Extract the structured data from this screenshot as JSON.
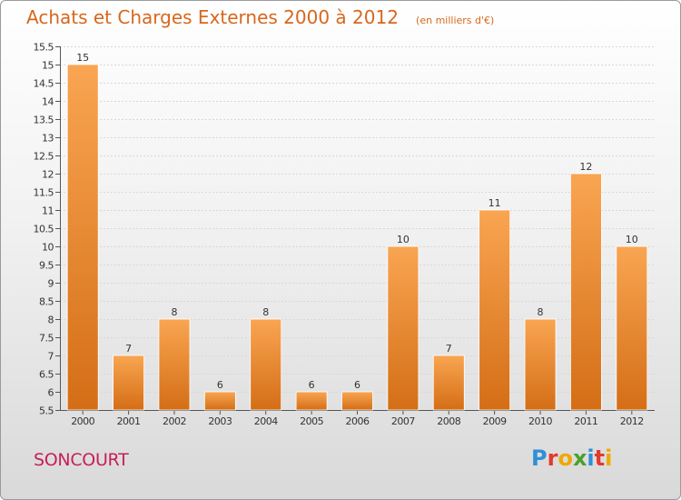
{
  "header": {
    "title": "Achats et Charges Externes 2000 à 2012",
    "subtitle": "(en milliers d'€)"
  },
  "footer": {
    "location": "SONCOURT",
    "logo_text": "Proxiti",
    "logo_letters": [
      {
        "ch": "P",
        "color": "#2f8fd8"
      },
      {
        "ch": "r",
        "color": "#e23a2e"
      },
      {
        "ch": "o",
        "color": "#f0a800"
      },
      {
        "ch": "x",
        "color": "#4aa02c"
      },
      {
        "ch": "i",
        "color": "#2f8fd8"
      },
      {
        "ch": "t",
        "color": "#e23a2e"
      },
      {
        "ch": "i",
        "color": "#f0a800"
      }
    ]
  },
  "colors": {
    "bar_light": "#f9a552",
    "bar_dark": "#d46e16",
    "title": "#d7671d",
    "location": "#c81e5a"
  },
  "chart_data": {
    "type": "bar",
    "categories": [
      "2000",
      "2001",
      "2002",
      "2003",
      "2004",
      "2005",
      "2006",
      "2007",
      "2008",
      "2009",
      "2010",
      "2011",
      "2012"
    ],
    "values": [
      15,
      7,
      8,
      6,
      8,
      6,
      6,
      10,
      7,
      11,
      8,
      12,
      10
    ],
    "data_labels": [
      "15",
      "7",
      "8",
      "6",
      "8",
      "6",
      "6",
      "10",
      "7",
      "11",
      "8",
      "12",
      "10"
    ],
    "ylim": [
      5.5,
      15.5
    ],
    "yticks": [
      "5.5",
      "6",
      "6.5",
      "7",
      "7.5",
      "8",
      "8.5",
      "9",
      "9.5",
      "10",
      "10.5",
      "11",
      "11.5",
      "12",
      "12.5",
      "13",
      "13.5",
      "14",
      "14.5",
      "15",
      "15.5"
    ],
    "grid": true
  }
}
